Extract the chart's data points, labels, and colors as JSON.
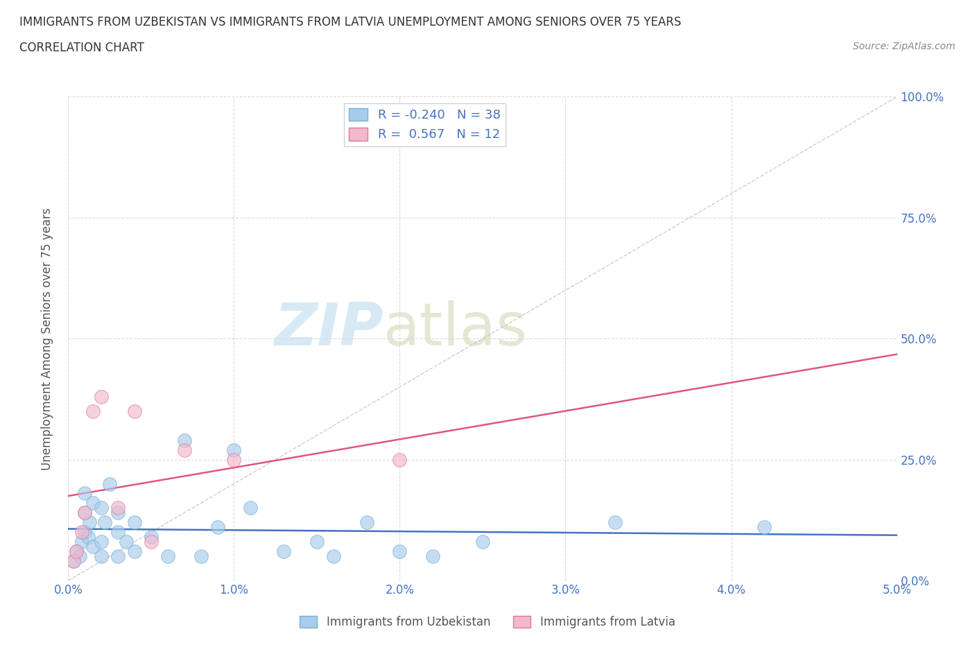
{
  "title_line1": "IMMIGRANTS FROM UZBEKISTAN VS IMMIGRANTS FROM LATVIA UNEMPLOYMENT AMONG SENIORS OVER 75 YEARS",
  "title_line2": "CORRELATION CHART",
  "source_text": "Source: ZipAtlas.com",
  "ylabel": "Unemployment Among Seniors over 75 years",
  "xlim": [
    0.0,
    0.05
  ],
  "ylim": [
    0.0,
    1.0
  ],
  "xtick_labels": [
    "0.0%",
    "1.0%",
    "2.0%",
    "3.0%",
    "4.0%",
    "5.0%"
  ],
  "xtick_vals": [
    0.0,
    0.01,
    0.02,
    0.03,
    0.04,
    0.05
  ],
  "ytick_labels": [
    "0.0%",
    "25.0%",
    "50.0%",
    "75.0%",
    "100.0%"
  ],
  "ytick_vals": [
    0.0,
    0.25,
    0.5,
    0.75,
    1.0
  ],
  "color_uzbekistan": "#A8CCEA",
  "color_latvia": "#F4B8CC",
  "color_edge_uzbekistan": "#7AAFD4",
  "color_edge_latvia": "#E07898",
  "color_line_uzbekistan": "#4472C4",
  "color_line_latvia": "#E05580",
  "color_diagonal": "#C8C8C8",
  "R_uzbekistan": -0.24,
  "N_uzbekistan": 38,
  "R_latvia": 0.567,
  "N_latvia": 12,
  "watermark_zip": "ZIP",
  "watermark_atlas": "atlas",
  "uzbekistan_x": [
    0.0003,
    0.0005,
    0.0007,
    0.0008,
    0.001,
    0.001,
    0.001,
    0.0012,
    0.0013,
    0.0015,
    0.0015,
    0.002,
    0.002,
    0.002,
    0.0022,
    0.0025,
    0.003,
    0.003,
    0.003,
    0.0035,
    0.004,
    0.004,
    0.005,
    0.006,
    0.007,
    0.008,
    0.009,
    0.01,
    0.011,
    0.013,
    0.015,
    0.016,
    0.018,
    0.02,
    0.022,
    0.025,
    0.033,
    0.042
  ],
  "uzbekistan_y": [
    0.04,
    0.06,
    0.05,
    0.08,
    0.1,
    0.14,
    0.18,
    0.09,
    0.12,
    0.07,
    0.16,
    0.05,
    0.08,
    0.15,
    0.12,
    0.2,
    0.05,
    0.1,
    0.14,
    0.08,
    0.06,
    0.12,
    0.09,
    0.05,
    0.29,
    0.05,
    0.11,
    0.27,
    0.15,
    0.06,
    0.08,
    0.05,
    0.12,
    0.06,
    0.05,
    0.08,
    0.12,
    0.11
  ],
  "latvia_x": [
    0.0003,
    0.0005,
    0.0008,
    0.001,
    0.0015,
    0.002,
    0.003,
    0.004,
    0.005,
    0.007,
    0.01,
    0.02
  ],
  "latvia_y": [
    0.04,
    0.06,
    0.1,
    0.14,
    0.35,
    0.38,
    0.15,
    0.35,
    0.08,
    0.27,
    0.25,
    0.25
  ]
}
